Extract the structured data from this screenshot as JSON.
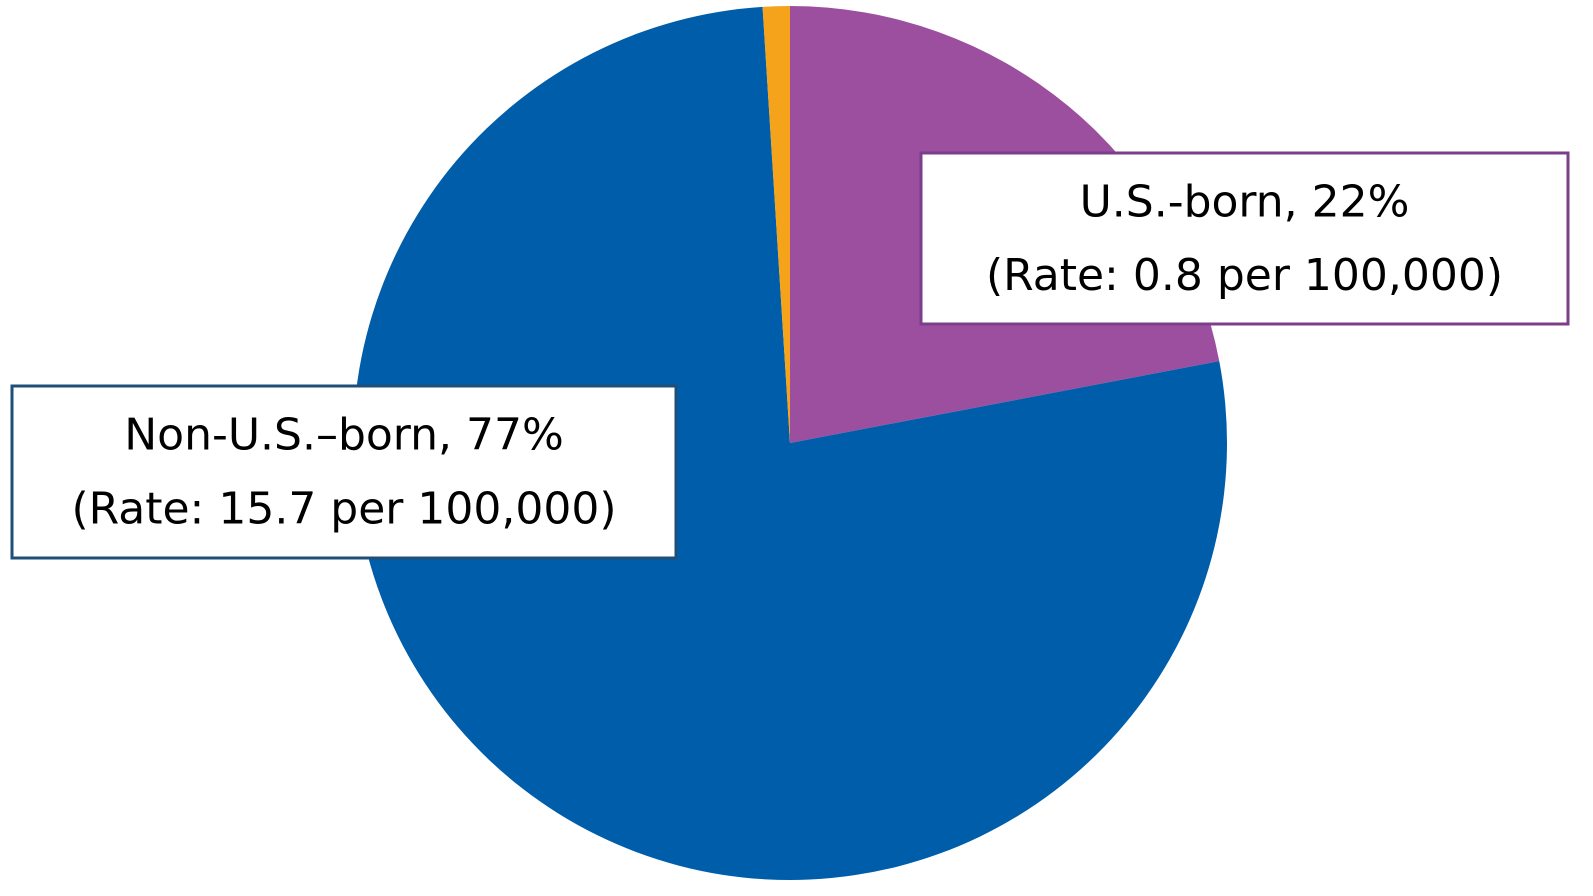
{
  "chart_data": {
    "type": "pie",
    "categories": [
      "U.S.-born",
      "Non-U.S.–born",
      null
    ],
    "values": [
      22,
      77,
      1
    ],
    "value_labels": [
      "U.S.-born, 22%",
      "Non-U.S.–born, 77%",
      null
    ],
    "rate_labels": [
      "(Rate: 0.8 per 100,000)",
      "(Rate: 15.7 per 100,000)",
      null
    ],
    "colors": [
      "#9b4f9e",
      "#005da9",
      "#f5a31a"
    ],
    "label_border_colors": [
      "#7b3f8a",
      "#1f4e79",
      null
    ],
    "start_angle": 0,
    "direction": "clockwise"
  }
}
